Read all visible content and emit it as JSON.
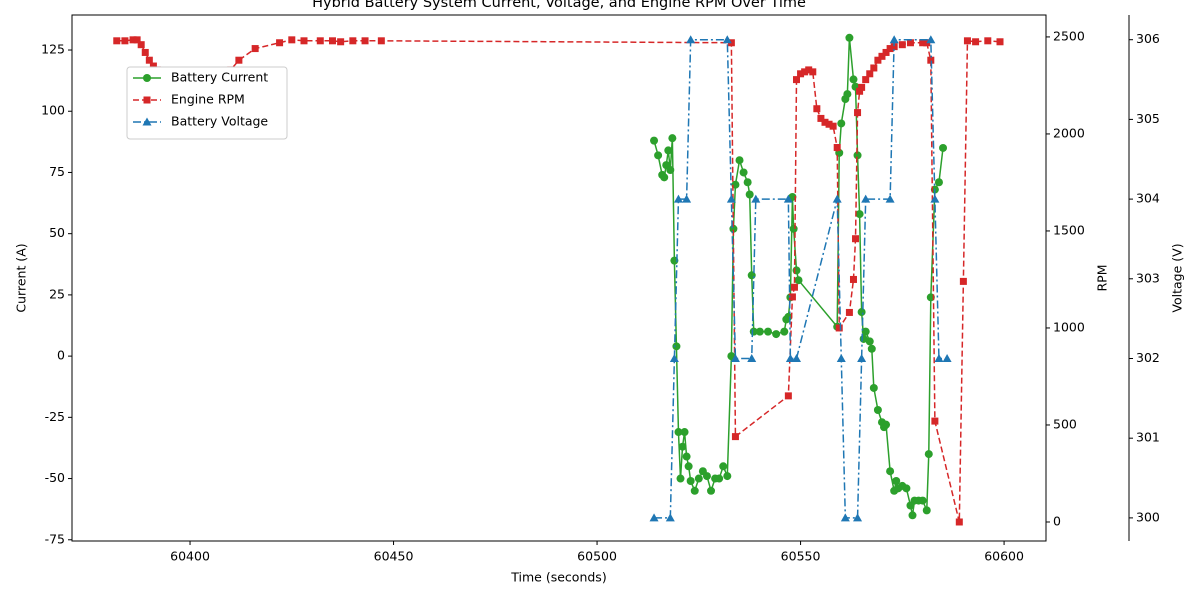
{
  "chart_data": {
    "type": "line",
    "title": "Hybrid Battery System Current, Voltage, and Engine RPM Over Time",
    "x_label": "Time (seconds)",
    "y_label": "Current (A)",
    "y2_label": "RPM",
    "y3_label": "Voltage (V)",
    "xlim": [
      60371,
      60610.3
    ],
    "xticks": [
      60400,
      60450,
      60500,
      60550,
      60600
    ],
    "ylim": [
      -75.5,
      139.3
    ],
    "yticks": [
      -75,
      -50,
      -25,
      0,
      25,
      50,
      75,
      100,
      125
    ],
    "y2lim": [
      -98,
      2613
    ],
    "y2ticks": [
      0,
      500,
      1000,
      1500,
      2000,
      2500
    ],
    "y3lim": [
      299.71,
      306.31
    ],
    "y3ticks": [
      300,
      301,
      302,
      303,
      304,
      305,
      306
    ],
    "y_color": "#2ca02c",
    "y2_color": "#d62728",
    "y3_color": "#1f77b4",
    "legend": "upper left",
    "series": [
      {
        "name": "Battery Current",
        "color": "#2ca02c",
        "axis": "y",
        "marker": "circle",
        "linestyle": "solid",
        "x": [
          60514,
          60515,
          60516,
          60516.5,
          60517,
          60517.5,
          60518,
          60518.5,
          60519,
          60519.5,
          60520,
          60520.5,
          60521,
          60521.5,
          60522,
          60522.5,
          60523,
          60524,
          60525,
          60526,
          60527,
          60528,
          60529,
          60530,
          60531,
          60532,
          60533,
          60533.5,
          60534,
          60535,
          60536,
          60537,
          60537.5,
          60538,
          60538.5,
          60540,
          60542,
          60544,
          60546,
          60546.5,
          60547,
          60547.5,
          60548,
          60548.3,
          60549,
          60549.5,
          60559,
          60559.5,
          60560,
          60561,
          60561.5,
          60562,
          60563,
          60563.5,
          60564,
          60564.5,
          60565,
          60565.5,
          60566,
          60567,
          60567.5,
          60568,
          60569,
          60570,
          60570.5,
          60571,
          60572,
          60573,
          60573.5,
          60574,
          60575,
          60576,
          60577,
          60577.5,
          60578,
          60579,
          60580,
          60581,
          60581.5,
          60582,
          60583,
          60584,
          60585
        ],
        "values": [
          88,
          82,
          74,
          73,
          78,
          84,
          76,
          89,
          39,
          4,
          -31,
          -50,
          -37,
          -31,
          -41,
          -45,
          -51,
          -55,
          -50,
          -47,
          -49,
          -55,
          -50,
          -50,
          -45,
          -49,
          0,
          52,
          70,
          80,
          75,
          71,
          66,
          33,
          10,
          10,
          10,
          9,
          10,
          15,
          16,
          24,
          65,
          52,
          35,
          31,
          12,
          83,
          95,
          105,
          107,
          130,
          113,
          110,
          82,
          58,
          18,
          7,
          10,
          6,
          3,
          -13,
          -22,
          -27,
          -29,
          -28,
          -47,
          -55,
          -51,
          -54,
          -53,
          -54,
          -61,
          -65,
          -59,
          -59,
          -59,
          -63,
          -40,
          24,
          68,
          71,
          85
        ]
      },
      {
        "name": "Engine RPM",
        "color": "#d62728",
        "axis": "y2",
        "marker": "square",
        "linestyle": "dashed",
        "x": [
          60382,
          60384,
          60386,
          60387,
          60388,
          60389,
          60390,
          60391,
          60392,
          60393,
          60395,
          60398,
          60400,
          60405,
          60410,
          60412,
          60416,
          60422,
          60425,
          60428,
          60432,
          60435,
          60437,
          60440,
          60443,
          60447,
          60533,
          60534,
          60547,
          60548,
          60548.5,
          60549,
          60550,
          60551,
          60552,
          60553,
          60554,
          60555,
          60556,
          60557,
          60558,
          60559,
          60559.5,
          60562,
          60563,
          60563.5,
          60564,
          60564.5,
          60565,
          60566,
          60567,
          60568,
          60569,
          60570,
          60571,
          60572,
          60573,
          60575,
          60577,
          60580,
          60581,
          60582,
          60583,
          60589,
          60590,
          60591,
          60593,
          60596,
          60599
        ],
        "values": [
          2480,
          2480,
          2485,
          2485,
          2460,
          2420,
          2380,
          2350,
          2330,
          2320,
          2320,
          2320,
          2320,
          2315,
          2330,
          2380,
          2440,
          2470,
          2485,
          2480,
          2480,
          2480,
          2475,
          2480,
          2480,
          2480,
          2470,
          440,
          650,
          1160,
          1210,
          2280,
          2310,
          2320,
          2330,
          2320,
          2130,
          2080,
          2060,
          2050,
          2040,
          1930,
          1000,
          1080,
          1250,
          1460,
          2110,
          2220,
          2240,
          2280,
          2310,
          2340,
          2380,
          2400,
          2420,
          2440,
          2450,
          2460,
          2470,
          2470,
          2470,
          2380,
          520,
          0,
          1240,
          2480,
          2475,
          2480,
          2475
        ]
      },
      {
        "name": "Battery Voltage",
        "color": "#1f77b4",
        "axis": "y3",
        "marker": "triangle",
        "linestyle": "dashdot",
        "x": [
          60514,
          60518,
          60519,
          60520,
          60522,
          60523,
          60532,
          60533,
          60534,
          60538,
          60539,
          60547,
          60547.5,
          60549,
          60559,
          60560,
          60561,
          60564,
          60565,
          60566,
          60572,
          60573,
          60582,
          60583,
          60584,
          60586
        ],
        "values": [
          300,
          300,
          302,
          304,
          304,
          306,
          306,
          304,
          302,
          302,
          304,
          304,
          302,
          302,
          304,
          302,
          300,
          300,
          302,
          304,
          304,
          306,
          306,
          304,
          302,
          302
        ]
      }
    ]
  }
}
